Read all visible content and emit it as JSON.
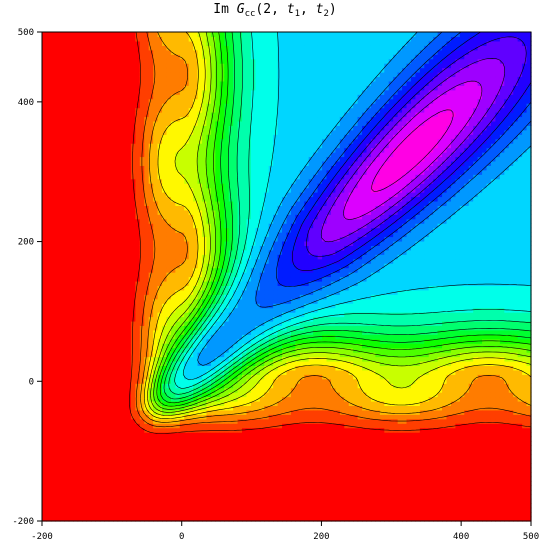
{
  "chart_data": {
    "type": "contour",
    "title": {
      "prefix": "Im ",
      "G": "G",
      "G_sub": "cc",
      "args_open": "(2, ",
      "t1": "t",
      "t1_sub": "1",
      "comma": ", ",
      "t2": "t",
      "t2_sub": "2",
      "close": ")"
    },
    "xlim": [
      -200,
      500
    ],
    "ylim": [
      -200,
      500
    ],
    "x_ticks": [
      "-200",
      "0",
      "200",
      "400",
      "500"
    ],
    "x_tick_values": [
      -200,
      0,
      200,
      400,
      500
    ],
    "y_ticks": [
      "-200",
      "0",
      "200",
      "400",
      "500"
    ],
    "y_tick_values": [
      -200,
      0,
      200,
      400,
      500
    ],
    "contour_levels": 24,
    "colormap": "hue (red → orange → yellow → green → cyan → blue → violet → magenta → red)",
    "features": {
      "flat_region": "red, for t1 < -50 or t2 < -50",
      "ridge": "diagonal, peak near (300, 270) extending toward (500, 520)"
    }
  }
}
